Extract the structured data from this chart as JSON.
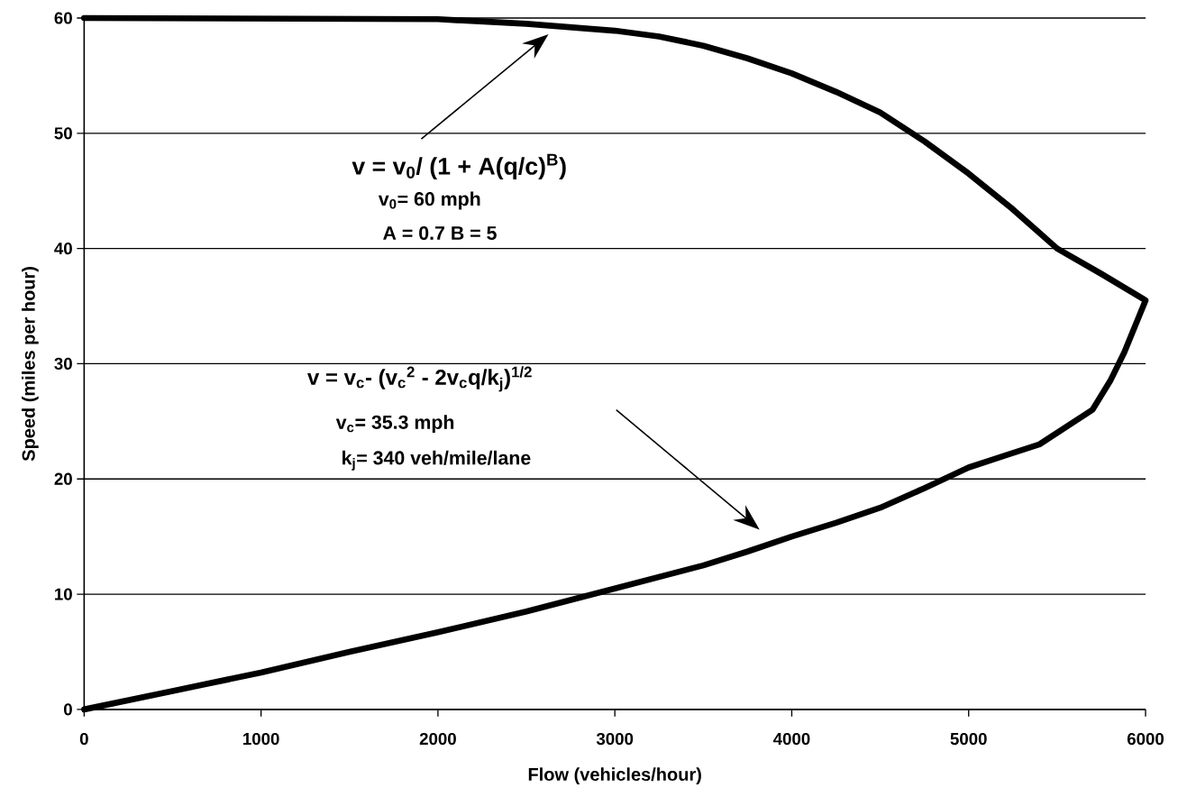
{
  "chart_data": {
    "type": "line",
    "xlabel": "Flow (vehicles/hour)",
    "ylabel": "Speed (miles per hour)",
    "xlim": [
      0,
      6000
    ],
    "ylim": [
      0,
      60
    ],
    "xticks": [
      0,
      1000,
      2000,
      3000,
      4000,
      5000,
      6000
    ],
    "yticks": [
      0,
      10,
      20,
      30,
      40,
      50,
      60
    ],
    "grid": "y",
    "marker": "none",
    "line_style": "solid",
    "series": [
      {
        "color": "#000000",
        "x": [
          0,
          2000,
          2500,
          3000,
          3250,
          3500,
          3750,
          4000,
          4250,
          4500,
          4750,
          5000,
          5250,
          5500,
          5750,
          6000,
          5880,
          5800,
          5700,
          5550,
          5400,
          5200,
          5000,
          4750,
          4500,
          4250,
          4000,
          3750,
          3500,
          3000,
          2500,
          2000,
          1500,
          1000,
          500,
          0
        ],
        "values": [
          60,
          59.9,
          59.5,
          58.9,
          58.4,
          57.6,
          56.5,
          55.2,
          53.6,
          51.8,
          49.3,
          46.5,
          43.4,
          40,
          37.8,
          35.5,
          31,
          28.5,
          26,
          24.5,
          23,
          22,
          21,
          19.2,
          17.5,
          16.2,
          15,
          13.7,
          12.5,
          10.5,
          8.5,
          6.7,
          5,
          3.2,
          1.6,
          0
        ]
      }
    ],
    "annotations": [
      "v = v$_{0}$/ (1 + A(q/c)$^{B}$)",
      "v$_{0}$= 60 mph",
      "A = 0.7 B = 5",
      "v = v$_{c}$- (v$_{c}$$^{2}$ - 2v$_{c}$q/k$_{j}$)$^{1/2}$",
      "v$_{c}$= 35.3 mph",
      "k$_{j}$= 340 veh/mile/lane"
    ]
  }
}
